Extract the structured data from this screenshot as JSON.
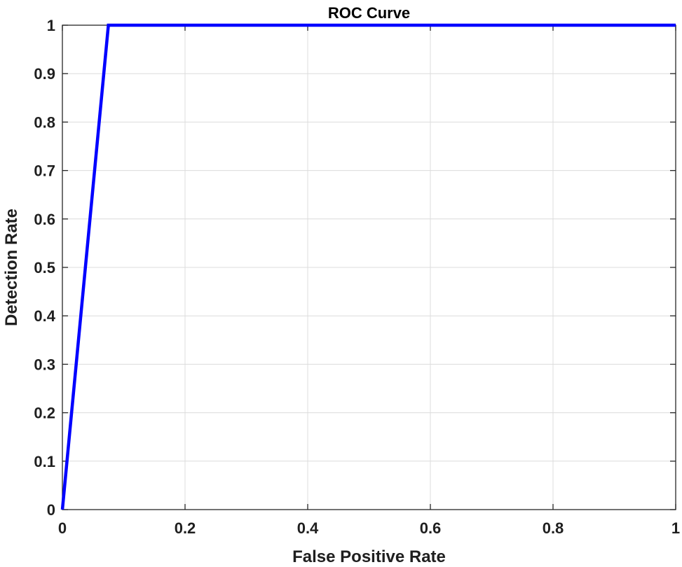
{
  "chart_data": {
    "type": "line",
    "title": "ROC Curve",
    "xlabel": "False Positive Rate",
    "ylabel": "Detection Rate",
    "xlim": [
      0,
      1
    ],
    "ylim": [
      0,
      1
    ],
    "grid": true,
    "x_ticks": [
      0,
      0.2,
      0.4,
      0.6,
      0.8,
      1
    ],
    "x_tick_labels": [
      "0",
      "0.2",
      "0.4",
      "0.6",
      "0.8",
      "1"
    ],
    "y_ticks": [
      0,
      0.1,
      0.2,
      0.3,
      0.4,
      0.5,
      0.6,
      0.7,
      0.8,
      0.9,
      1
    ],
    "y_tick_labels": [
      "0",
      "0.1",
      "0.2",
      "0.3",
      "0.4",
      "0.5",
      "0.6",
      "0.7",
      "0.8",
      "0.9",
      "1"
    ],
    "series": [
      {
        "color": "#0000ff",
        "x": [
          0,
          0.075,
          1
        ],
        "y": [
          0,
          1,
          1
        ]
      }
    ]
  }
}
